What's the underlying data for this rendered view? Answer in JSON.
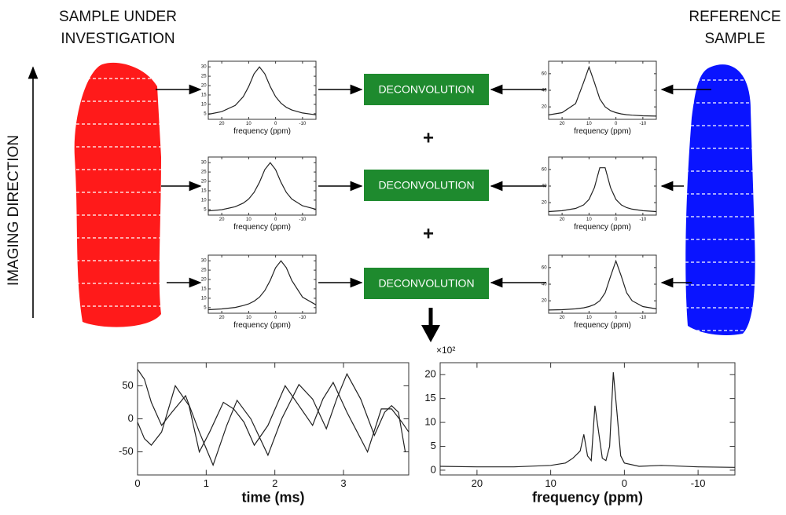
{
  "left_heading": [
    "SAMPLE UNDER",
    "INVESTIGATION"
  ],
  "right_heading": [
    "REFERENCE",
    "SAMPLE"
  ],
  "axis_label": "IMAGING DIRECTION",
  "joins": [
    "+",
    "+"
  ],
  "spectrum_axes": {
    "xlabel": "frequency (ppm)",
    "xlim": [
      25,
      -15
    ],
    "xticks": [
      20,
      10,
      0,
      -10
    ],
    "x": [
      25,
      20,
      15,
      12,
      10,
      8,
      6,
      4,
      2,
      0,
      -2,
      -4,
      -6,
      -10,
      -15
    ]
  },
  "rows": [
    {
      "sample_spectrum": {
        "ylim": [
          2,
          33
        ],
        "yticks": [
          5,
          10,
          15,
          20,
          25,
          30
        ],
        "values": [
          4.7,
          6.1,
          9.4,
          14.1,
          19.5,
          26.3,
          30,
          26.3,
          19.5,
          14.1,
          10.6,
          8.4,
          7,
          5.4,
          4.4
        ]
      },
      "operation": "DECONVOLUTION",
      "reference_spectrum": {
        "ylim": [
          5,
          75
        ],
        "yticks": [
          20,
          40,
          60
        ],
        "values": [
          10.3,
          13,
          23.9,
          49.6,
          68,
          49.6,
          29.6,
          20,
          15.4,
          13,
          11.5,
          10.6,
          10,
          9.3,
          8.9
        ]
      }
    },
    {
      "sample_spectrum": {
        "ylim": [
          2,
          33
        ],
        "yticks": [
          5,
          10,
          15,
          20,
          25,
          30
        ],
        "values": [
          4.2,
          4.9,
          6.5,
          8.4,
          10.6,
          14.1,
          19.5,
          26.3,
          30,
          26.3,
          19.5,
          14.1,
          10.6,
          7,
          5.1
        ]
      },
      "operation": "DECONVOLUTION",
      "reference_spectrum": {
        "ylim": [
          5,
          75
        ],
        "yticks": [
          20,
          40,
          60
        ],
        "values": [
          9.3,
          10.3,
          13,
          17.3,
          23.9,
          38,
          62,
          62,
          38,
          23.9,
          17.3,
          14,
          12.2,
          10.3,
          9.3
        ]
      }
    },
    {
      "sample_spectrum": {
        "ylim": [
          2,
          33
        ],
        "yticks": [
          5,
          10,
          15,
          20,
          25,
          30
        ],
        "values": [
          3.9,
          4.3,
          5.1,
          6.1,
          7,
          8.4,
          10.6,
          14.1,
          19.5,
          26.3,
          30,
          26.3,
          19.5,
          10.6,
          6.5
        ]
      },
      "operation": "DECONVOLUTION",
      "reference_spectrum": {
        "ylim": [
          5,
          75
        ],
        "yticks": [
          20,
          40,
          60
        ],
        "values": [
          8.9,
          9.3,
          10.3,
          11.5,
          13,
          15.4,
          20,
          29.6,
          49.6,
          68,
          49.6,
          29.6,
          20,
          13,
          10.3
        ]
      }
    }
  ],
  "time_signal": {
    "xlabel": "time (ms)",
    "xlim": [
      0,
      3.95
    ],
    "ylim": [
      -85,
      85
    ],
    "xticks": [
      0,
      1,
      2,
      3
    ],
    "yticks": [
      -50,
      0,
      50
    ],
    "series": [
      {
        "x": [
          0,
          0.1,
          0.2,
          0.35,
          0.5,
          0.7,
          0.9,
          1.1,
          1.3,
          1.45,
          1.65,
          1.9,
          2.1,
          2.35,
          2.55,
          2.75,
          2.9,
          3.05,
          3.25,
          3.45,
          3.6,
          3.7,
          3.8,
          3.9
        ],
        "values": [
          75,
          60,
          25,
          -10,
          10,
          35,
          -20,
          -70,
          -10,
          28,
          0,
          -55,
          0,
          52,
          30,
          -15,
          30,
          68,
          30,
          -25,
          10,
          20,
          10,
          -50
        ]
      },
      {
        "x": [
          0,
          0.1,
          0.2,
          0.35,
          0.55,
          0.75,
          0.9,
          1.05,
          1.25,
          1.4,
          1.55,
          1.7,
          1.9,
          2.15,
          2.35,
          2.55,
          2.7,
          2.85,
          3.05,
          3.2,
          3.35,
          3.55,
          3.7,
          3.85,
          3.95
        ],
        "values": [
          -5,
          -30,
          -40,
          -20,
          50,
          20,
          -50,
          -20,
          25,
          15,
          -5,
          -40,
          -10,
          50,
          20,
          -10,
          30,
          55,
          10,
          -20,
          -50,
          15,
          15,
          -5,
          -20
        ]
      }
    ]
  },
  "result_spectrum": {
    "xlabel": "frequency (ppm)",
    "scale_label": "×10²",
    "xlim": [
      25,
      -15
    ],
    "ylim": [
      -1,
      22.5
    ],
    "xticks": [
      20,
      10,
      0,
      -10
    ],
    "yticks": [
      0,
      5,
      10,
      15,
      20
    ],
    "series": [
      {
        "x": [
          25,
          20,
          15,
          10,
          8,
          7,
          6,
          5.5,
          5,
          4.5,
          4,
          3.5,
          3,
          2.5,
          2,
          1.5,
          1,
          0.5,
          0,
          -2,
          -5,
          -10,
          -15
        ],
        "values": [
          0.8,
          0.7,
          0.7,
          1,
          1.5,
          2.5,
          4,
          7.5,
          3,
          2,
          13.5,
          8,
          2.5,
          2,
          5,
          20.5,
          12,
          3,
          1.5,
          0.8,
          1,
          0.7,
          0.6
        ]
      }
    ]
  }
}
